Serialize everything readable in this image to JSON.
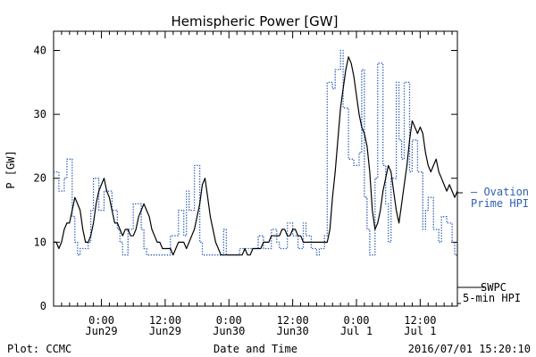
{
  "chart_data": {
    "type": "line",
    "title": "Hemispheric Power [GW]",
    "ylabel": "P [GW]",
    "xlabel": "Date and Time",
    "ylim": [
      0,
      43
    ],
    "xlim_hours": [
      0,
      152
    ],
    "yticks": [
      0,
      10,
      20,
      30,
      40
    ],
    "xticks": [
      {
        "hour": 18,
        "time": "0:00",
        "day": "Jun29"
      },
      {
        "hour": 42,
        "time": "12:00",
        "day": "Jun29"
      },
      {
        "hour": 66,
        "time": "0:00",
        "day": "Jun30"
      },
      {
        "hour": 90,
        "time": "12:00",
        "day": "Jun30"
      },
      {
        "hour": 114,
        "time": "0:00",
        "day": "Jul 1"
      },
      {
        "hour": 138,
        "time": "12:00",
        "day": "Jul 1"
      }
    ],
    "grid": false,
    "series": [
      {
        "name": "Ovation Prime HPI",
        "color": "#2f5fb5",
        "style": "dotted-step",
        "points": [
          [
            0,
            21
          ],
          [
            2,
            21
          ],
          [
            2,
            18
          ],
          [
            4,
            18
          ],
          [
            4,
            20
          ],
          [
            5,
            20
          ],
          [
            5,
            23
          ],
          [
            7,
            23
          ],
          [
            7,
            14
          ],
          [
            8,
            14
          ],
          [
            8,
            10
          ],
          [
            9,
            10
          ],
          [
            9,
            8
          ],
          [
            10,
            8
          ],
          [
            10,
            9
          ],
          [
            13,
            9
          ],
          [
            13,
            10
          ],
          [
            14,
            10
          ],
          [
            14,
            15
          ],
          [
            15,
            15
          ],
          [
            15,
            20
          ],
          [
            17,
            20
          ],
          [
            17,
            15
          ],
          [
            19,
            15
          ],
          [
            19,
            18
          ],
          [
            22,
            18
          ],
          [
            22,
            15
          ],
          [
            24,
            15
          ],
          [
            24,
            12
          ],
          [
            25,
            12
          ],
          [
            25,
            10
          ],
          [
            26,
            10
          ],
          [
            26,
            8
          ],
          [
            28,
            8
          ],
          [
            28,
            12
          ],
          [
            30,
            12
          ],
          [
            30,
            16
          ],
          [
            33,
            16
          ],
          [
            33,
            12
          ],
          [
            34,
            12
          ],
          [
            34,
            9
          ],
          [
            35,
            9
          ],
          [
            35,
            8
          ],
          [
            44,
            8
          ],
          [
            44,
            11
          ],
          [
            47,
            11
          ],
          [
            47,
            15
          ],
          [
            49,
            15
          ],
          [
            49,
            11
          ],
          [
            50,
            11
          ],
          [
            50,
            18
          ],
          [
            51,
            18
          ],
          [
            51,
            15
          ],
          [
            53,
            15
          ],
          [
            53,
            22
          ],
          [
            55,
            22
          ],
          [
            55,
            10
          ],
          [
            56,
            10
          ],
          [
            56,
            8
          ],
          [
            64,
            8
          ],
          [
            64,
            12
          ],
          [
            65,
            12
          ],
          [
            65,
            8
          ],
          [
            70,
            8
          ],
          [
            70,
            9
          ],
          [
            77,
            9
          ],
          [
            77,
            11
          ],
          [
            79,
            11
          ],
          [
            79,
            9
          ],
          [
            82,
            9
          ],
          [
            82,
            12
          ],
          [
            84,
            12
          ],
          [
            84,
            10
          ],
          [
            85,
            10
          ],
          [
            85,
            9
          ],
          [
            88,
            9
          ],
          [
            88,
            13
          ],
          [
            90,
            13
          ],
          [
            90,
            11
          ],
          [
            92,
            11
          ],
          [
            92,
            9
          ],
          [
            94,
            9
          ],
          [
            94,
            13
          ],
          [
            95,
            13
          ],
          [
            95,
            11
          ],
          [
            97,
            11
          ],
          [
            97,
            9
          ],
          [
            99,
            9
          ],
          [
            99,
            8
          ],
          [
            100,
            8
          ],
          [
            100,
            9
          ],
          [
            102,
            9
          ],
          [
            102,
            11
          ],
          [
            103,
            11
          ],
          [
            103,
            35
          ],
          [
            105,
            35
          ],
          [
            105,
            34
          ],
          [
            106,
            34
          ],
          [
            106,
            37
          ],
          [
            108,
            37
          ],
          [
            108,
            40
          ],
          [
            109,
            40
          ],
          [
            109,
            31
          ],
          [
            111,
            31
          ],
          [
            111,
            23
          ],
          [
            113,
            23
          ],
          [
            113,
            22
          ],
          [
            115,
            22
          ],
          [
            115,
            24
          ],
          [
            116,
            24
          ],
          [
            116,
            37
          ],
          [
            117,
            37
          ],
          [
            117,
            17
          ],
          [
            118,
            17
          ],
          [
            118,
            12
          ],
          [
            119,
            12
          ],
          [
            119,
            8
          ],
          [
            121,
            8
          ],
          [
            121,
            20
          ],
          [
            122,
            20
          ],
          [
            122,
            38
          ],
          [
            124,
            38
          ],
          [
            124,
            22
          ],
          [
            125,
            22
          ],
          [
            125,
            16
          ],
          [
            126,
            16
          ],
          [
            126,
            10
          ],
          [
            127,
            10
          ],
          [
            127,
            20
          ],
          [
            129,
            20
          ],
          [
            129,
            35
          ],
          [
            130,
            35
          ],
          [
            130,
            26
          ],
          [
            131,
            26
          ],
          [
            131,
            23
          ],
          [
            132,
            23
          ],
          [
            132,
            35
          ],
          [
            134,
            35
          ],
          [
            134,
            21
          ],
          [
            135,
            21
          ],
          [
            135,
            26
          ],
          [
            137,
            26
          ],
          [
            137,
            21
          ],
          [
            139,
            21
          ],
          [
            139,
            12
          ],
          [
            140,
            12
          ],
          [
            140,
            15
          ],
          [
            141,
            15
          ],
          [
            141,
            17
          ],
          [
            143,
            17
          ],
          [
            143,
            12
          ],
          [
            145,
            12
          ],
          [
            145,
            10
          ],
          [
            146,
            10
          ],
          [
            146,
            14
          ],
          [
            148,
            14
          ],
          [
            148,
            13
          ],
          [
            150,
            13
          ],
          [
            150,
            10
          ],
          [
            151,
            10
          ],
          [
            151,
            8
          ],
          [
            152,
            8
          ]
        ]
      },
      {
        "name": "SWPC 5-min HPI",
        "color": "#000000",
        "style": "solid",
        "points": [
          [
            0,
            10
          ],
          [
            1,
            10
          ],
          [
            2,
            9
          ],
          [
            3,
            10
          ],
          [
            4,
            12
          ],
          [
            5,
            13
          ],
          [
            6,
            13
          ],
          [
            7,
            15
          ],
          [
            8,
            17
          ],
          [
            9,
            16
          ],
          [
            10,
            15
          ],
          [
            11,
            12
          ],
          [
            12,
            10
          ],
          [
            13,
            10
          ],
          [
            14,
            11
          ],
          [
            15,
            13
          ],
          [
            16,
            16
          ],
          [
            17,
            18
          ],
          [
            18,
            19
          ],
          [
            19,
            20
          ],
          [
            20,
            18
          ],
          [
            21,
            17
          ],
          [
            22,
            15
          ],
          [
            23,
            13
          ],
          [
            24,
            13
          ],
          [
            25,
            12
          ],
          [
            26,
            11
          ],
          [
            27,
            12
          ],
          [
            28,
            12
          ],
          [
            29,
            11
          ],
          [
            30,
            11
          ],
          [
            31,
            12
          ],
          [
            32,
            14
          ],
          [
            33,
            15
          ],
          [
            34,
            16
          ],
          [
            35,
            15
          ],
          [
            36,
            14
          ],
          [
            37,
            12
          ],
          [
            38,
            11
          ],
          [
            39,
            10
          ],
          [
            40,
            10
          ],
          [
            41,
            9
          ],
          [
            42,
            9
          ],
          [
            43,
            9
          ],
          [
            44,
            9
          ],
          [
            45,
            8
          ],
          [
            46,
            9
          ],
          [
            47,
            10
          ],
          [
            48,
            10
          ],
          [
            49,
            10
          ],
          [
            50,
            9
          ],
          [
            51,
            10
          ],
          [
            52,
            11
          ],
          [
            53,
            12
          ],
          [
            54,
            14
          ],
          [
            55,
            16
          ],
          [
            56,
            19
          ],
          [
            57,
            20
          ],
          [
            58,
            17
          ],
          [
            59,
            14
          ],
          [
            60,
            12
          ],
          [
            61,
            10
          ],
          [
            62,
            9
          ],
          [
            63,
            8
          ],
          [
            64,
            8
          ],
          [
            65,
            8
          ],
          [
            66,
            8
          ],
          [
            67,
            8
          ],
          [
            68,
            8
          ],
          [
            69,
            8
          ],
          [
            70,
            8
          ],
          [
            71,
            8
          ],
          [
            72,
            9
          ],
          [
            73,
            8
          ],
          [
            74,
            8
          ],
          [
            75,
            9
          ],
          [
            76,
            9
          ],
          [
            77,
            9
          ],
          [
            78,
            9
          ],
          [
            79,
            10
          ],
          [
            80,
            10
          ],
          [
            81,
            10
          ],
          [
            82,
            11
          ],
          [
            83,
            11
          ],
          [
            84,
            11
          ],
          [
            85,
            11
          ],
          [
            86,
            12
          ],
          [
            87,
            12
          ],
          [
            88,
            11
          ],
          [
            89,
            11
          ],
          [
            90,
            12
          ],
          [
            91,
            12
          ],
          [
            92,
            11
          ],
          [
            93,
            11
          ],
          [
            94,
            10
          ],
          [
            95,
            10
          ],
          [
            96,
            10
          ],
          [
            97,
            10
          ],
          [
            98,
            10
          ],
          [
            99,
            10
          ],
          [
            100,
            10
          ],
          [
            101,
            10
          ],
          [
            102,
            10
          ],
          [
            103,
            10
          ],
          [
            104,
            12
          ],
          [
            105,
            17
          ],
          [
            106,
            21
          ],
          [
            107,
            26
          ],
          [
            108,
            31
          ],
          [
            109,
            34
          ],
          [
            110,
            37
          ],
          [
            111,
            39
          ],
          [
            112,
            38
          ],
          [
            113,
            36
          ],
          [
            114,
            33
          ],
          [
            115,
            30
          ],
          [
            116,
            28
          ],
          [
            117,
            27
          ],
          [
            118,
            25
          ],
          [
            119,
            21
          ],
          [
            120,
            15
          ],
          [
            121,
            12
          ],
          [
            122,
            13
          ],
          [
            123,
            15
          ],
          [
            124,
            18
          ],
          [
            125,
            20
          ],
          [
            126,
            22
          ],
          [
            127,
            21
          ],
          [
            128,
            18
          ],
          [
            129,
            15
          ],
          [
            130,
            13
          ],
          [
            131,
            16
          ],
          [
            132,
            19
          ],
          [
            133,
            22
          ],
          [
            134,
            26
          ],
          [
            135,
            29
          ],
          [
            136,
            28
          ],
          [
            137,
            27
          ],
          [
            138,
            28
          ],
          [
            139,
            27
          ],
          [
            140,
            24
          ],
          [
            141,
            22
          ],
          [
            142,
            21
          ],
          [
            143,
            22
          ],
          [
            144,
            23
          ],
          [
            145,
            21
          ],
          [
            146,
            20
          ],
          [
            147,
            19
          ],
          [
            148,
            18
          ],
          [
            149,
            19
          ],
          [
            150,
            18
          ],
          [
            151,
            17
          ],
          [
            152,
            18
          ]
        ]
      }
    ],
    "legend": {
      "placement": "right",
      "ovation_line1": "— Ovation",
      "ovation_line2": "Prime HPI",
      "swpc_line1": "SWPC",
      "swpc_line2": "5-min HPI"
    }
  },
  "footer": {
    "left": "Plot: CCMC",
    "center": "Date and Time",
    "right": "2016/07/01 15:20:10"
  }
}
